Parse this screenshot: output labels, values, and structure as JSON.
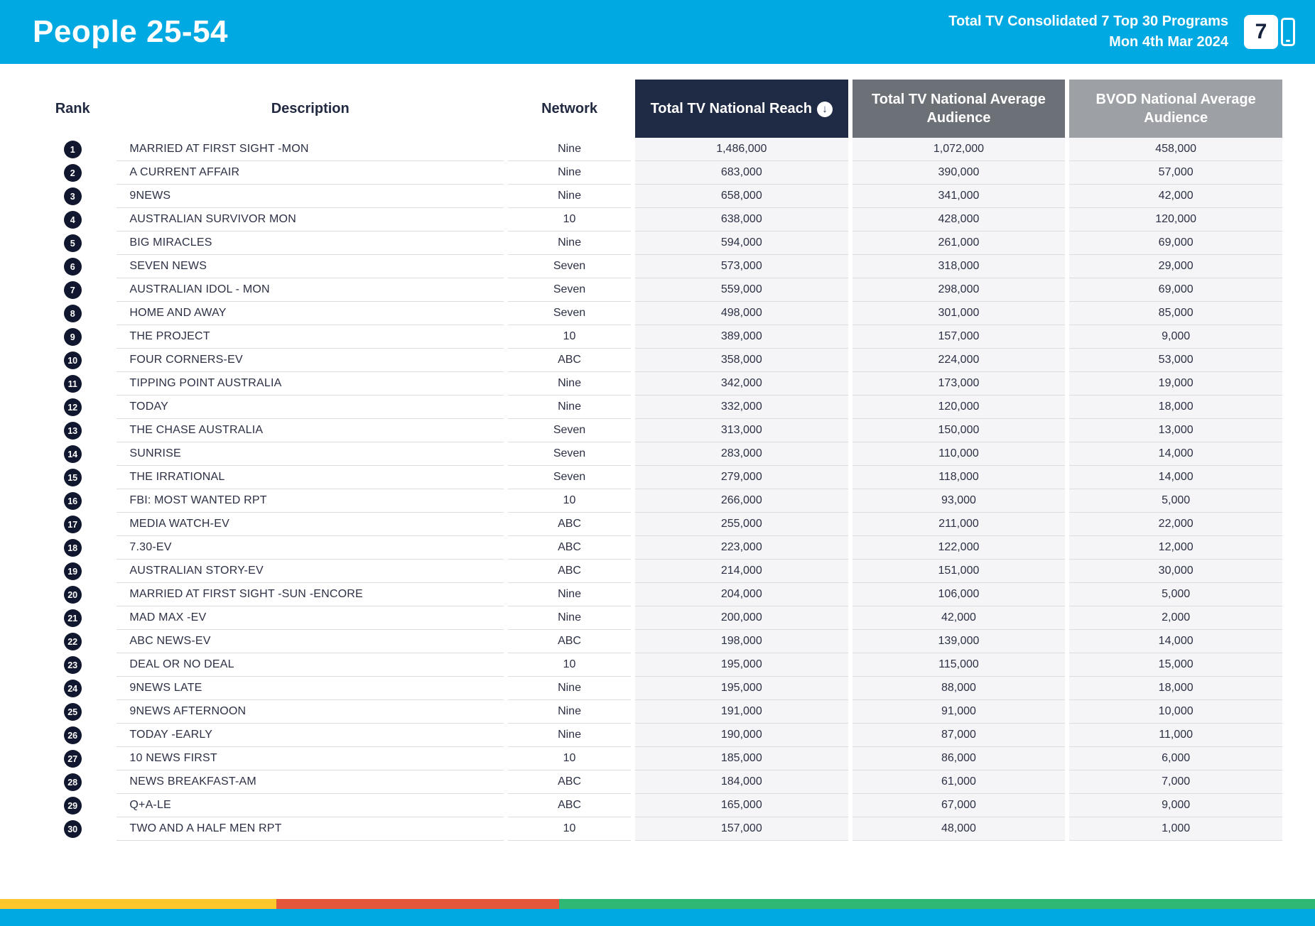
{
  "header": {
    "title": "People 25-54",
    "subtitle_line1": "Total TV Consolidated 7 Top 30 Programs",
    "subtitle_line2": "Mon 4th Mar 2024",
    "logo_text": "7"
  },
  "icons": {
    "sort_descending": "↓"
  },
  "colors": {
    "brand_cyan": "#00A9E2",
    "reach_header": "#1F2A44",
    "avg_header": "#6C7177",
    "bvod_header": "#9DA1A6",
    "rank_badge": "#10172E",
    "stripe_yellow": "#FFC72C",
    "stripe_red": "#E4573D",
    "stripe_green": "#2EB873"
  },
  "table": {
    "columns": {
      "rank": "Rank",
      "description": "Description",
      "network": "Network",
      "reach": "Total TV National Reach",
      "avg": "Total TV National Average Audience",
      "bvod": "BVOD National Average Audience"
    },
    "rows": [
      {
        "rank": "1",
        "description": "MARRIED AT FIRST SIGHT -MON",
        "network": "Nine",
        "reach": "1,486,000",
        "avg": "1,072,000",
        "bvod": "458,000"
      },
      {
        "rank": "2",
        "description": "A CURRENT AFFAIR",
        "network": "Nine",
        "reach": "683,000",
        "avg": "390,000",
        "bvod": "57,000"
      },
      {
        "rank": "3",
        "description": "9NEWS",
        "network": "Nine",
        "reach": "658,000",
        "avg": "341,000",
        "bvod": "42,000"
      },
      {
        "rank": "4",
        "description": "AUSTRALIAN SURVIVOR MON",
        "network": "10",
        "reach": "638,000",
        "avg": "428,000",
        "bvod": "120,000"
      },
      {
        "rank": "5",
        "description": "BIG MIRACLES",
        "network": "Nine",
        "reach": "594,000",
        "avg": "261,000",
        "bvod": "69,000"
      },
      {
        "rank": "6",
        "description": "SEVEN NEWS",
        "network": "Seven",
        "reach": "573,000",
        "avg": "318,000",
        "bvod": "29,000"
      },
      {
        "rank": "7",
        "description": "AUSTRALIAN IDOL - MON",
        "network": "Seven",
        "reach": "559,000",
        "avg": "298,000",
        "bvod": "69,000"
      },
      {
        "rank": "8",
        "description": "HOME AND AWAY",
        "network": "Seven",
        "reach": "498,000",
        "avg": "301,000",
        "bvod": "85,000"
      },
      {
        "rank": "9",
        "description": "THE PROJECT",
        "network": "10",
        "reach": "389,000",
        "avg": "157,000",
        "bvod": "9,000"
      },
      {
        "rank": "10",
        "description": "FOUR CORNERS-EV",
        "network": "ABC",
        "reach": "358,000",
        "avg": "224,000",
        "bvod": "53,000"
      },
      {
        "rank": "11",
        "description": "TIPPING POINT AUSTRALIA",
        "network": "Nine",
        "reach": "342,000",
        "avg": "173,000",
        "bvod": "19,000"
      },
      {
        "rank": "12",
        "description": "TODAY",
        "network": "Nine",
        "reach": "332,000",
        "avg": "120,000",
        "bvod": "18,000"
      },
      {
        "rank": "13",
        "description": "THE CHASE AUSTRALIA",
        "network": "Seven",
        "reach": "313,000",
        "avg": "150,000",
        "bvod": "13,000"
      },
      {
        "rank": "14",
        "description": "SUNRISE",
        "network": "Seven",
        "reach": "283,000",
        "avg": "110,000",
        "bvod": "14,000"
      },
      {
        "rank": "15",
        "description": "THE IRRATIONAL",
        "network": "Seven",
        "reach": "279,000",
        "avg": "118,000",
        "bvod": "14,000"
      },
      {
        "rank": "16",
        "description": "FBI: MOST WANTED RPT",
        "network": "10",
        "reach": "266,000",
        "avg": "93,000",
        "bvod": "5,000"
      },
      {
        "rank": "17",
        "description": "MEDIA WATCH-EV",
        "network": "ABC",
        "reach": "255,000",
        "avg": "211,000",
        "bvod": "22,000"
      },
      {
        "rank": "18",
        "description": "7.30-EV",
        "network": "ABC",
        "reach": "223,000",
        "avg": "122,000",
        "bvod": "12,000"
      },
      {
        "rank": "19",
        "description": "AUSTRALIAN STORY-EV",
        "network": "ABC",
        "reach": "214,000",
        "avg": "151,000",
        "bvod": "30,000"
      },
      {
        "rank": "20",
        "description": "MARRIED AT FIRST SIGHT -SUN -ENCORE",
        "network": "Nine",
        "reach": "204,000",
        "avg": "106,000",
        "bvod": "5,000"
      },
      {
        "rank": "21",
        "description": "MAD MAX -EV",
        "network": "Nine",
        "reach": "200,000",
        "avg": "42,000",
        "bvod": "2,000"
      },
      {
        "rank": "22",
        "description": "ABC NEWS-EV",
        "network": "ABC",
        "reach": "198,000",
        "avg": "139,000",
        "bvod": "14,000"
      },
      {
        "rank": "23",
        "description": "DEAL OR NO DEAL",
        "network": "10",
        "reach": "195,000",
        "avg": "115,000",
        "bvod": "15,000"
      },
      {
        "rank": "24",
        "description": "9NEWS LATE",
        "network": "Nine",
        "reach": "195,000",
        "avg": "88,000",
        "bvod": "18,000"
      },
      {
        "rank": "25",
        "description": "9NEWS AFTERNOON",
        "network": "Nine",
        "reach": "191,000",
        "avg": "91,000",
        "bvod": "10,000"
      },
      {
        "rank": "26",
        "description": "TODAY -EARLY",
        "network": "Nine",
        "reach": "190,000",
        "avg": "87,000",
        "bvod": "11,000"
      },
      {
        "rank": "27",
        "description": "10 NEWS FIRST",
        "network": "10",
        "reach": "185,000",
        "avg": "86,000",
        "bvod": "6,000"
      },
      {
        "rank": "28",
        "description": "NEWS BREAKFAST-AM",
        "network": "ABC",
        "reach": "184,000",
        "avg": "61,000",
        "bvod": "7,000"
      },
      {
        "rank": "29",
        "description": "Q+A-LE",
        "network": "ABC",
        "reach": "165,000",
        "avg": "67,000",
        "bvod": "9,000"
      },
      {
        "rank": "30",
        "description": "TWO AND A HALF MEN RPT",
        "network": "10",
        "reach": "157,000",
        "avg": "48,000",
        "bvod": "1,000"
      }
    ]
  }
}
